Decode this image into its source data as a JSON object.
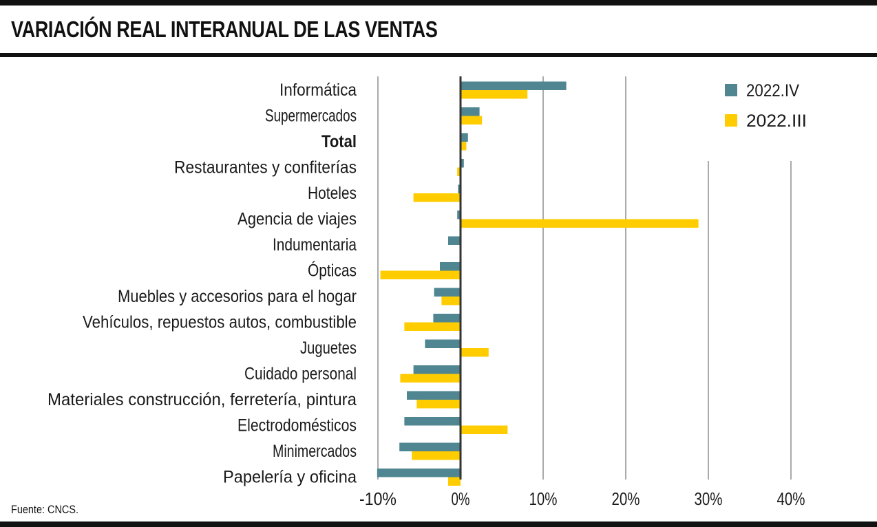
{
  "header": {
    "title": "VARIACIÓN REAL INTERANUAL DE LAS VENTAS"
  },
  "footer": {
    "source": "Fuente: CNCS."
  },
  "colors": {
    "series_iv": "#4f8691",
    "series_iii": "#ffcc00",
    "axis": "#333333",
    "rule": "#111111"
  },
  "chart_data": {
    "type": "bar",
    "orientation": "horizontal",
    "title": "VARIACIÓN REAL INTERANUAL DE LAS VENTAS",
    "categories": [
      "Informática",
      "Supermercados",
      "Total",
      "Restaurantes y confiterías",
      "Hoteles",
      "Agencia de viajes",
      "Indumentaria",
      "Ópticas",
      "Muebles y accesorios para el hogar",
      "Vehículos, repuestos autos, combustible",
      "Juguetes",
      "Cuidado personal",
      "Materiales construcción, ferretería, pintura",
      "Electrodomésticos",
      "Minimercados",
      "Papelería y oficina"
    ],
    "bold_categories": [
      "Total"
    ],
    "series": [
      {
        "name": "2022.IV",
        "values": [
          12.8,
          2.3,
          0.9,
          0.4,
          -0.3,
          -0.4,
          -1.5,
          -2.5,
          -3.2,
          -3.3,
          -4.3,
          -5.7,
          -6.5,
          -6.8,
          -7.4,
          -10.1
        ]
      },
      {
        "name": "2022.III",
        "values": [
          8.1,
          2.6,
          0.7,
          -0.4,
          -5.7,
          28.8,
          0.0,
          -9.7,
          -2.3,
          -6.8,
          3.4,
          -7.3,
          -5.3,
          5.7,
          -5.9,
          -1.5
        ]
      }
    ],
    "xlim": [
      -10,
      40
    ],
    "xticks": [
      "-10%",
      "0%",
      "10%",
      "20%",
      "30%",
      "40%"
    ],
    "xlabel": "",
    "ylabel": "",
    "grid": "vertical",
    "legend": {
      "position": "top-right",
      "entries": [
        "2022.IV",
        "2022.III"
      ]
    }
  }
}
